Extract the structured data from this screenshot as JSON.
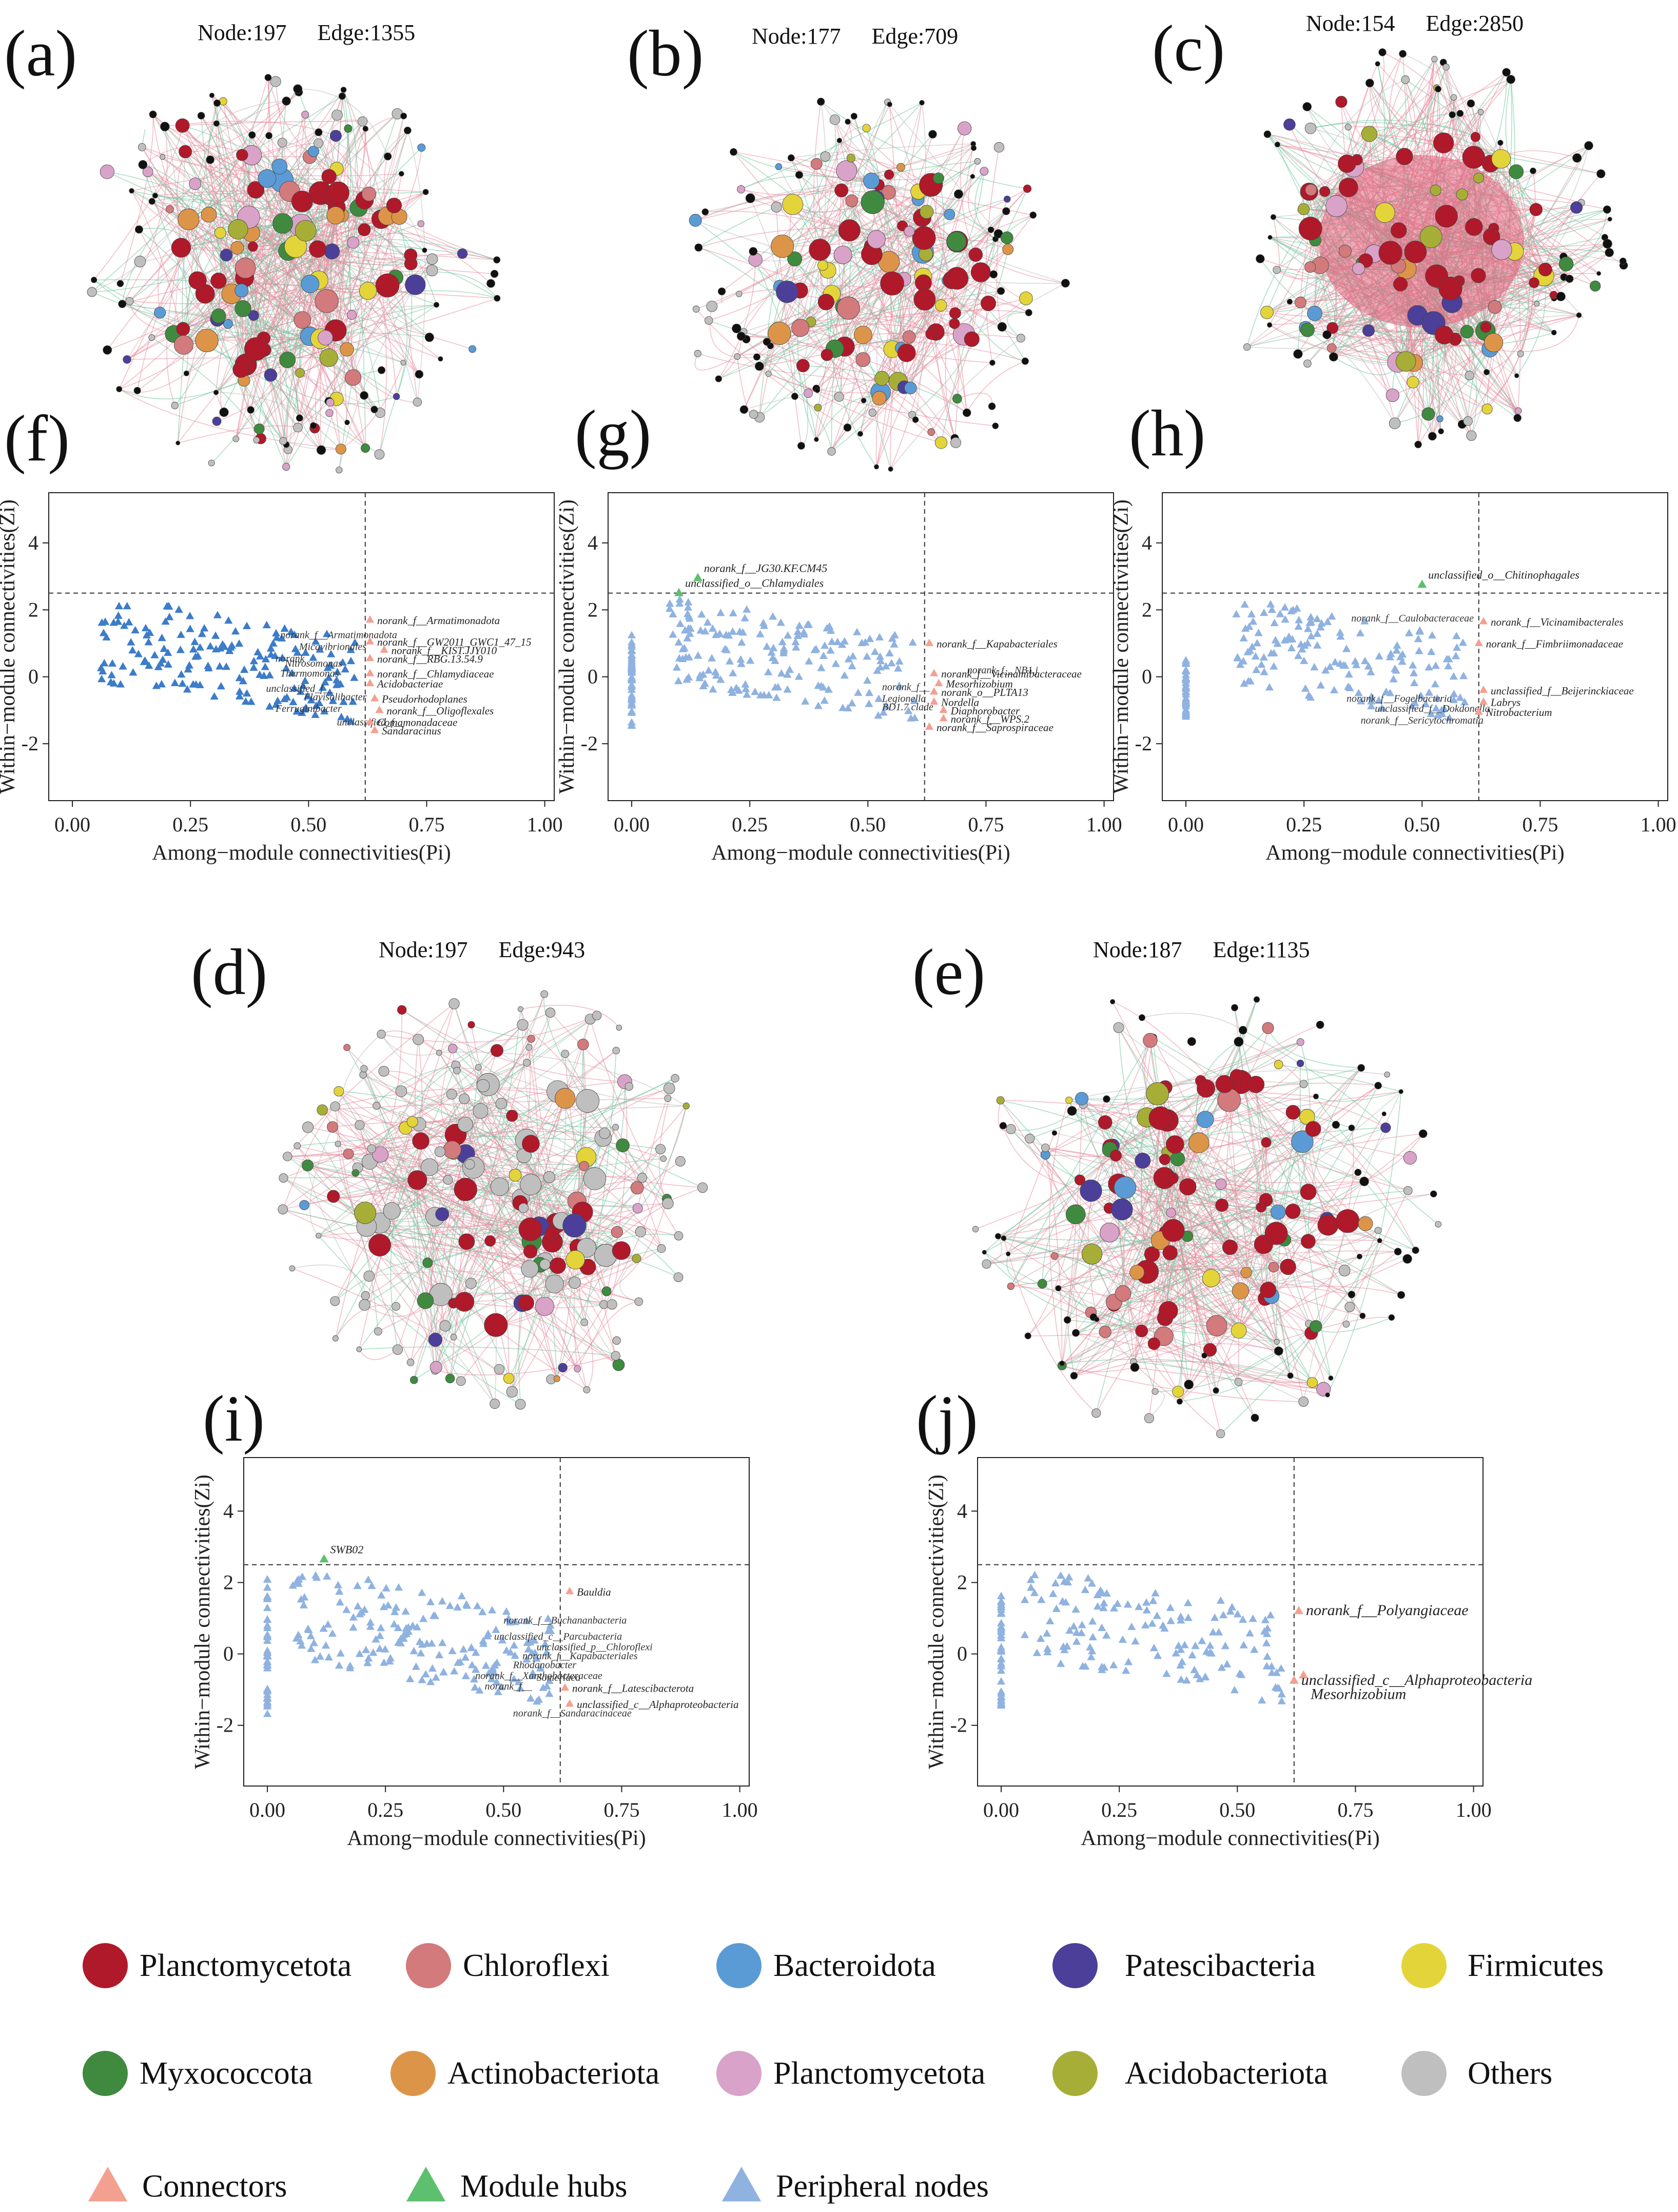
{
  "panels": {
    "a": {
      "letter": "(a)",
      "node_label": "Node:197",
      "edge_label": "Edge:1355"
    },
    "b": {
      "letter": "(b)",
      "node_label": "Node:177",
      "edge_label": "Edge:709"
    },
    "c": {
      "letter": "(c)",
      "node_label": "Node:154",
      "edge_label": "Edge:2850"
    },
    "d": {
      "letter": "(d)",
      "node_label": "Node:197",
      "edge_label": "Edge:943"
    },
    "e": {
      "letter": "(e)",
      "node_label": "Node:187",
      "edge_label": "Edge:1135"
    },
    "f": {
      "letter": "(f)"
    },
    "g": {
      "letter": "(g)"
    },
    "h": {
      "letter": "(h)"
    },
    "i": {
      "letter": "(i)"
    },
    "j": {
      "letter": "(j)"
    }
  },
  "colors": {
    "planctomycetota": "#b0192a",
    "chloroflexi": "#d27a7c",
    "bacteroidota": "#5b9bd5",
    "patescibacteria": "#4c3f9a",
    "firmicutes": "#e3d43a",
    "myxococcota": "#3f8a3f",
    "actinobacteriota": "#dc9548",
    "planctomycetota2": "#d9a2c8",
    "acidobacteriota": "#a7ae37",
    "others": "#bfbfbf",
    "black": "#111111",
    "edge_pos": "#e8889a",
    "edge_neg": "#6cc39a",
    "connector": "#f4a090",
    "module_hub": "#5dc06e",
    "peripheral": "#8fb2e0",
    "peripheral_dark": "#3c7cc8"
  },
  "legend": {
    "phyla": [
      {
        "label": "Planctomycetota",
        "color": "#b0192a"
      },
      {
        "label": "Chloroflexi",
        "color": "#d27a7c"
      },
      {
        "label": "Bacteroidota",
        "color": "#5b9bd5"
      },
      {
        "label": "Patescibacteria",
        "color": "#4c3f9a"
      },
      {
        "label": "Firmicutes",
        "color": "#e3d43a"
      },
      {
        "label": "Myxococcota",
        "color": "#3f8a3f"
      },
      {
        "label": "Actinobacteriota",
        "color": "#dc9548"
      },
      {
        "label": "Planctomycetota",
        "color": "#d9a2c8"
      },
      {
        "label": "Acidobacteriota",
        "color": "#a7ae37"
      },
      {
        "label": "Others",
        "color": "#bfbfbf"
      }
    ],
    "roles": [
      {
        "label": "Connectors",
        "color": "#f4a090"
      },
      {
        "label": "Module hubs",
        "color": "#5dc06e"
      },
      {
        "label": "Peripheral nodes",
        "color": "#8fb2e0"
      }
    ]
  },
  "chart_data": [
    {
      "id": "f",
      "type": "scatter",
      "xlabel": "Among−module connectivities(Pi)",
      "ylabel": "Within−module connectivities(Zi)",
      "xlim": [
        -0.05,
        1.02
      ],
      "ylim": [
        -3.7,
        5.5
      ],
      "xticks": [
        "0.00",
        "0.25",
        "0.50",
        "0.75",
        "1.00"
      ],
      "yticks": [
        "-2",
        "0",
        "2",
        "4"
      ],
      "zi_threshold": 2.5,
      "pi_threshold": 0.62,
      "point_color": "#3c7cc8",
      "peripheral_count": 170,
      "peripheral_seed": 11,
      "peripheral_xrange": [
        0.05,
        0.6
      ],
      "peripheral_yrange": [
        -2.0,
        2.1
      ],
      "hub_points": [],
      "connector_points": [
        {
          "x": 0.63,
          "y": 1.7,
          "label": "norank_f__Armatimonadota"
        },
        {
          "x": 0.63,
          "y": 1.05,
          "label": "norank_f__GW2011_GWC1_47_15"
        },
        {
          "x": 0.66,
          "y": 0.8,
          "label": "norank_f__KIST.JJY010"
        },
        {
          "x": 0.63,
          "y": 0.55,
          "label": "norank_f__RBG.13.54.9"
        },
        {
          "x": 0.63,
          "y": 0.1,
          "label": "norank_f__Chlamydiaceae"
        },
        {
          "x": 0.63,
          "y": -0.2,
          "label": "Acidobacteriae"
        },
        {
          "x": 0.64,
          "y": -0.65,
          "label": "Pseudorhodoplanes"
        },
        {
          "x": 0.65,
          "y": -1.0,
          "label": "norank_f__Oligoflexales"
        },
        {
          "x": 0.63,
          "y": -1.35,
          "label": "Comamonadaceae"
        },
        {
          "x": 0.64,
          "y": -1.6,
          "label": "Sandaracinus"
        }
      ],
      "peripheral_labels": [
        {
          "x": 0.44,
          "y": 1.15,
          "label": "norank_f__Armatimonadota"
        },
        {
          "x": 0.48,
          "y": 0.8,
          "label": "Micavibrionales"
        },
        {
          "x": 0.43,
          "y": 0.45,
          "label": "norank"
        },
        {
          "x": 0.45,
          "y": 0.3,
          "label": "Nitrosomonas"
        },
        {
          "x": 0.44,
          "y": -0.0,
          "label": "Thermomonas"
        },
        {
          "x": 0.41,
          "y": -0.45,
          "label": "unclassified_f__"
        },
        {
          "x": 0.49,
          "y": -0.7,
          "label": "Flavisolibacter"
        },
        {
          "x": 0.43,
          "y": -1.05,
          "label": "Ferruginibacter"
        },
        {
          "x": 0.56,
          "y": -1.45,
          "label": "unclassified_f__"
        }
      ]
    },
    {
      "id": "g",
      "type": "scatter",
      "xlabel": "Among−module connectivities(Pi)",
      "ylabel": "Within−module connectivities(Zi)",
      "xlim": [
        -0.05,
        1.02
      ],
      "ylim": [
        -3.7,
        5.5
      ],
      "xticks": [
        "0.00",
        "0.25",
        "0.50",
        "0.75",
        "1.00"
      ],
      "yticks": [
        "-2",
        "0",
        "2",
        "4"
      ],
      "zi_threshold": 2.5,
      "pi_threshold": 0.62,
      "point_color": "#8fb2e0",
      "peripheral_count": 170,
      "peripheral_seed": 23,
      "peripheral_xrange": [
        0.08,
        0.6
      ],
      "peripheral_yrange": [
        -1.8,
        2.3
      ],
      "zero_column": {
        "count": 45,
        "yrange": [
          -1.6,
          1.4
        ]
      },
      "hub_points": [
        {
          "x": 0.14,
          "y": 2.95,
          "label": "norank_f__JG30.KF.CM45"
        },
        {
          "x": 0.1,
          "y": 2.5,
          "label": "unclassified_o__Chlamydiales"
        }
      ],
      "connector_points": [
        {
          "x": 0.63,
          "y": 1.0,
          "label": "norank_f__Kapabacteriales"
        },
        {
          "x": 0.64,
          "y": 0.1,
          "label": "norank_f__Vicinamibacteraceae"
        },
        {
          "x": 0.65,
          "y": -0.2,
          "label": "Mesorhizobium"
        },
        {
          "x": 0.64,
          "y": -0.45,
          "label": "norank_o__PLTA13"
        },
        {
          "x": 0.64,
          "y": -0.75,
          "label": "Nordella"
        },
        {
          "x": 0.66,
          "y": -1.0,
          "label": "Diaphorobacter"
        },
        {
          "x": 0.66,
          "y": -1.25,
          "label": "norank_f__WPS.2"
        },
        {
          "x": 0.63,
          "y": -1.5,
          "label": "norank_f__Saprospiraceae"
        }
      ],
      "peripheral_labels": [
        {
          "x": 0.71,
          "y": 0.1,
          "label": "norank_f__NB1.j"
        },
        {
          "x": 0.53,
          "y": -0.4,
          "label": "norank_f__"
        },
        {
          "x": 0.53,
          "y": -0.75,
          "label": "Legionella"
        },
        {
          "x": 0.53,
          "y": -1.0,
          "label": "BD1.7 clade"
        }
      ]
    },
    {
      "id": "h",
      "type": "scatter",
      "xlabel": "Among−module connectivities(Pi)",
      "ylabel": "Within−module connectivities(Zi)",
      "xlim": [
        -0.05,
        1.02
      ],
      "ylim": [
        -3.7,
        5.5
      ],
      "xticks": [
        "0.00",
        "0.25",
        "0.50",
        "0.75",
        "1.00"
      ],
      "yticks": [
        "-2",
        "0",
        "2",
        "4"
      ],
      "zi_threshold": 2.5,
      "pi_threshold": 0.62,
      "point_color": "#8fb2e0",
      "peripheral_count": 150,
      "peripheral_seed": 37,
      "peripheral_xrange": [
        0.1,
        0.6
      ],
      "peripheral_yrange": [
        -1.5,
        2.3
      ],
      "zero_column": {
        "count": 40,
        "yrange": [
          -1.3,
          0.5
        ]
      },
      "hub_points": [
        {
          "x": 0.5,
          "y": 2.75,
          "label": "unclassified_o__Chitinophagales"
        }
      ],
      "connector_points": [
        {
          "x": 0.63,
          "y": 1.65,
          "label": "norank_f__Vicinamibacterales"
        },
        {
          "x": 0.62,
          "y": 1.0,
          "label": "norank_f__Fimbriimonadaceae"
        },
        {
          "x": 0.63,
          "y": -0.4,
          "label": "unclassified_f__Beijerinckiaceae"
        },
        {
          "x": 0.63,
          "y": -0.75,
          "label": "Labrys"
        },
        {
          "x": 0.62,
          "y": -1.05,
          "label": "Nitrobacterium"
        }
      ],
      "peripheral_labels": [
        {
          "x": 0.35,
          "y": 1.65,
          "label": "norank_f__Caulobacteraceae"
        },
        {
          "x": 0.34,
          "y": -0.75,
          "label": "norank_f__Fogelbacteria"
        },
        {
          "x": 0.4,
          "y": -1.05,
          "label": "unclassified_f__Dokdonella"
        },
        {
          "x": 0.37,
          "y": -1.4,
          "label": "norank_f__Sericytochromatia"
        }
      ]
    },
    {
      "id": "i",
      "type": "scatter",
      "xlabel": "Among−module connectivities(Pi)",
      "ylabel": "Within−module connectivities(Zi)",
      "xlim": [
        -0.05,
        1.02
      ],
      "ylim": [
        -3.7,
        5.5
      ],
      "xticks": [
        "0.00",
        "0.25",
        "0.50",
        "0.75",
        "1.00"
      ],
      "yticks": [
        "-2",
        "0",
        "2",
        "4"
      ],
      "zi_threshold": 2.5,
      "pi_threshold": 0.62,
      "point_color": "#8fb2e0",
      "peripheral_count": 180,
      "peripheral_seed": 51,
      "peripheral_xrange": [
        0.05,
        0.6
      ],
      "peripheral_yrange": [
        -1.8,
        2.2
      ],
      "zero_column": {
        "count": 45,
        "yrange": [
          -1.7,
          2.1
        ]
      },
      "hub_points": [
        {
          "x": 0.12,
          "y": 2.65,
          "label": "SWB02"
        }
      ],
      "connector_points": [
        {
          "x": 0.64,
          "y": 1.75,
          "label": "Bauldia"
        },
        {
          "x": 0.63,
          "y": -0.95,
          "label": "norank_f__Latescibacterota"
        },
        {
          "x": 0.64,
          "y": -1.4,
          "label": "unclassified_c__Alphaproteobacteria"
        }
      ],
      "peripheral_labels": [
        {
          "x": 0.5,
          "y": 0.85,
          "label": "norank_f__Buchananbacteria"
        },
        {
          "x": 0.48,
          "y": 0.4,
          "label": "unclassified_c__Parcubacteria"
        },
        {
          "x": 0.57,
          "y": 0.1,
          "label": "unclassified_p__Chloroflexi"
        },
        {
          "x": 0.54,
          "y": -0.15,
          "label": "norank_f__Kapabacteriales"
        },
        {
          "x": 0.52,
          "y": -0.4,
          "label": "Rhodanobacter"
        },
        {
          "x": 0.44,
          "y": -0.7,
          "label": "norank_f__Xanthobacteraceae"
        },
        {
          "x": 0.57,
          "y": -0.75,
          "label": "Somerlaea"
        },
        {
          "x": 0.46,
          "y": -1.0,
          "label": "norank_f__"
        },
        {
          "x": 0.52,
          "y": -1.75,
          "label": "norank_f__Sandaracinaceae"
        }
      ]
    },
    {
      "id": "j",
      "type": "scatter",
      "xlabel": "Among−module connectivities(Pi)",
      "ylabel": "Within−module connectivities(Zi)",
      "xlim": [
        -0.05,
        1.02
      ],
      "ylim": [
        -3.7,
        5.5
      ],
      "xticks": [
        "0.00",
        "0.25",
        "0.50",
        "0.75",
        "1.00"
      ],
      "yticks": [
        "-2",
        "0",
        "2",
        "4"
      ],
      "zi_threshold": 2.5,
      "pi_threshold": 0.62,
      "point_color": "#8fb2e0",
      "peripheral_count": 140,
      "peripheral_seed": 67,
      "peripheral_xrange": [
        0.05,
        0.6
      ],
      "peripheral_yrange": [
        -1.4,
        2.2
      ],
      "zero_column": {
        "count": 40,
        "yrange": [
          -1.5,
          1.7
        ]
      },
      "hub_points": [],
      "connector_points": [
        {
          "x": 0.63,
          "y": 1.2,
          "label": "norank_f__Polyangiaceae",
          "big": true
        },
        {
          "x": 0.64,
          "y": -0.6,
          "label": "Mesorhizobium",
          "big": true,
          "label_dy": -0.55
        },
        {
          "x": 0.62,
          "y": -0.75,
          "label": "unclassified_c__Alphaproteobacteria",
          "big": true,
          "label_dy": 0.0
        }
      ],
      "peripheral_labels": []
    }
  ]
}
